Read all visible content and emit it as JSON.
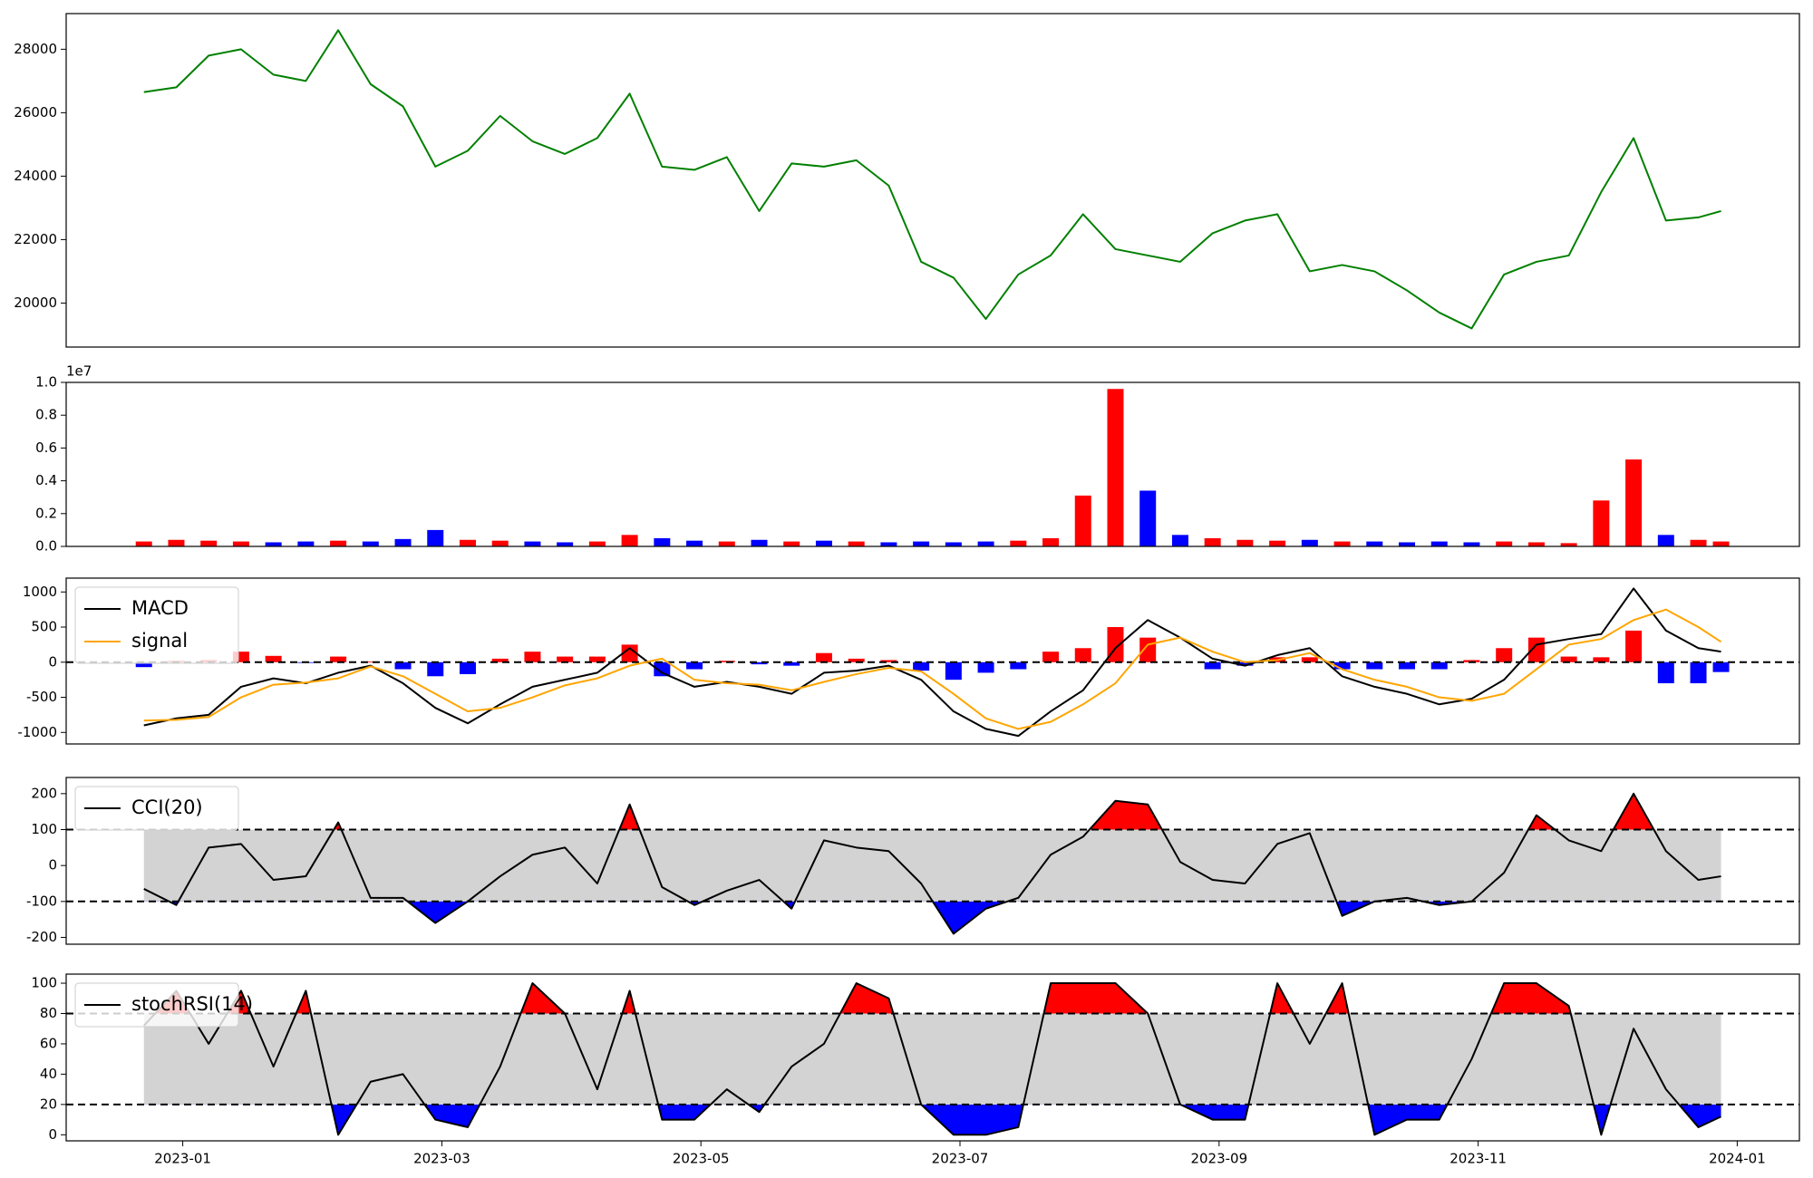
{
  "chart_data": [
    {
      "type": "line",
      "x": [
        -0.3,
        -0.05,
        0.2,
        0.45,
        0.7,
        0.95,
        1.2,
        1.45,
        1.7,
        1.95,
        2.2,
        2.45,
        2.7,
        2.95,
        3.2,
        3.45,
        3.7,
        3.95,
        4.2,
        4.45,
        4.7,
        4.95,
        5.2,
        5.45,
        5.7,
        5.95,
        6.2,
        6.45,
        6.7,
        6.95,
        7.2,
        7.45,
        7.7,
        7.95,
        8.2,
        8.45,
        8.7,
        8.95,
        9.2,
        9.45,
        9.7,
        9.95,
        10.2,
        10.45,
        10.7,
        10.95,
        11.2,
        11.45,
        11.7,
        11.875
      ],
      "xlim": [
        -0.9,
        12.48
      ],
      "ylim": [
        18613,
        29124
      ],
      "yticks": [
        20000,
        22000,
        24000,
        26000,
        28000
      ],
      "series": [
        {
          "color": "green",
          "values": [
            26650,
            26800,
            27800,
            28000,
            27200,
            27000,
            28600,
            26900,
            26200,
            24300,
            24800,
            25900,
            25100,
            24700,
            25200,
            26600,
            24300,
            24200,
            24600,
            22900,
            24400,
            24300,
            24500,
            23700,
            21300,
            20800,
            19500,
            20900,
            21500,
            22800,
            21700,
            21500,
            21300,
            22200,
            22600,
            22800,
            21000,
            21200,
            21000,
            20400,
            19700,
            19200,
            20900,
            21300,
            21500,
            23500,
            25200,
            22600,
            22700,
            22900
          ]
        }
      ]
    },
    {
      "type": "bar",
      "x": [
        -0.3,
        -0.05,
        0.2,
        0.45,
        0.7,
        0.95,
        1.2,
        1.45,
        1.7,
        1.95,
        2.2,
        2.45,
        2.7,
        2.95,
        3.2,
        3.45,
        3.7,
        3.95,
        4.2,
        4.45,
        4.7,
        4.95,
        5.2,
        5.45,
        5.7,
        5.95,
        6.2,
        6.45,
        6.7,
        6.95,
        7.2,
        7.45,
        7.7,
        7.95,
        8.2,
        8.45,
        8.7,
        8.95,
        9.2,
        9.45,
        9.7,
        9.95,
        10.2,
        10.45,
        10.7,
        10.95,
        11.2,
        11.45,
        11.7,
        11.875
      ],
      "xlim": [
        -0.9,
        12.48
      ],
      "ylim": [
        0,
        10000000
      ],
      "y_offset_text": "1e7",
      "yticks": [
        {
          "value": 0,
          "label": "0.0"
        },
        {
          "value": 2000000,
          "label": "0.2"
        },
        {
          "value": 4000000,
          "label": "0.4"
        },
        {
          "value": 6000000,
          "label": "0.6"
        },
        {
          "value": 8000000,
          "label": "0.8"
        },
        {
          "value": 10000000,
          "label": "1.0"
        }
      ],
      "values": [
        300000,
        400000,
        350000,
        300000,
        250000,
        300000,
        350000,
        300000,
        450000,
        1000000,
        400000,
        350000,
        300000,
        250000,
        300000,
        700000,
        500000,
        350000,
        300000,
        400000,
        300000,
        350000,
        300000,
        250000,
        300000,
        250000,
        300000,
        350000,
        500000,
        3100000,
        9600000,
        3400000,
        700000,
        500000,
        400000,
        350000,
        400000,
        300000,
        300000,
        250000,
        300000,
        250000,
        300000,
        250000,
        200000,
        2800000,
        5300000,
        700000,
        400000,
        300000
      ],
      "bar_colors": [
        "red",
        "red",
        "red",
        "red",
        "blue",
        "blue",
        "red",
        "blue",
        "blue",
        "blue",
        "red",
        "red",
        "blue",
        "blue",
        "red",
        "red",
        "blue",
        "blue",
        "red",
        "blue",
        "red",
        "blue",
        "red",
        "blue",
        "blue",
        "blue",
        "blue",
        "red",
        "red",
        "red",
        "red",
        "blue",
        "blue",
        "red",
        "red",
        "red",
        "blue",
        "red",
        "blue",
        "blue",
        "blue",
        "blue",
        "red",
        "red",
        "red",
        "red",
        "red",
        "blue",
        "red",
        "red"
      ]
    },
    {
      "type": "line",
      "x": [
        -0.3,
        -0.05,
        0.2,
        0.45,
        0.7,
        0.95,
        1.2,
        1.45,
        1.7,
        1.95,
        2.2,
        2.45,
        2.7,
        2.95,
        3.2,
        3.45,
        3.7,
        3.95,
        4.2,
        4.45,
        4.7,
        4.95,
        5.2,
        5.45,
        5.7,
        5.95,
        6.2,
        6.45,
        6.7,
        6.95,
        7.2,
        7.45,
        7.7,
        7.95,
        8.2,
        8.45,
        8.7,
        8.95,
        9.2,
        9.45,
        9.7,
        9.95,
        10.2,
        10.45,
        10.7,
        10.95,
        11.2,
        11.45,
        11.7,
        11.875
      ],
      "xlim": [
        -0.9,
        12.48
      ],
      "ylim": [
        -1164,
        1197
      ],
      "yticks": [
        -1000,
        -500,
        0,
        500,
        1000
      ],
      "legend": "upper left",
      "hlines": [
        0
      ],
      "histogram": {
        "colors": {
          "positive": "red",
          "negative": "blue"
        },
        "values": [
          -70,
          20,
          30,
          150,
          90,
          -10,
          80,
          10,
          -100,
          -200,
          -170,
          50,
          150,
          80,
          80,
          250,
          -200,
          -100,
          20,
          -30,
          -50,
          130,
          50,
          30,
          -120,
          -250,
          -150,
          -100,
          150,
          200,
          500,
          350,
          0,
          -100,
          -50,
          70,
          70,
          -100,
          -100,
          -100,
          -100,
          30,
          200,
          350,
          80,
          70,
          450,
          -300,
          -300,
          -140
        ]
      },
      "series": [
        {
          "name": "MACD",
          "color": "black",
          "values": [
            -900,
            -800,
            -750,
            -350,
            -230,
            -300,
            -150,
            -50,
            -300,
            -650,
            -870,
            -600,
            -350,
            -250,
            -150,
            200,
            -150,
            -350,
            -280,
            -350,
            -450,
            -150,
            -120,
            -50,
            -250,
            -700,
            -950,
            -1050,
            -700,
            -400,
            200,
            600,
            350,
            50,
            -50,
            100,
            200,
            -200,
            -350,
            -450,
            -600,
            -520,
            -250,
            250,
            330,
            400,
            1050,
            450,
            200,
            150
          ]
        },
        {
          "name": "signal",
          "color": "orange",
          "values": [
            -830,
            -820,
            -780,
            -500,
            -320,
            -290,
            -230,
            -60,
            -200,
            -450,
            -700,
            -650,
            -500,
            -330,
            -230,
            -50,
            50,
            -250,
            -300,
            -320,
            -400,
            -280,
            -170,
            -80,
            -130,
            -450,
            -800,
            -950,
            -850,
            -600,
            -300,
            250,
            350,
            150,
            0,
            30,
            130,
            -100,
            -250,
            -350,
            -500,
            -550,
            -450,
            -100,
            250,
            330,
            600,
            750,
            500,
            290
          ]
        }
      ]
    },
    {
      "type": "line",
      "x": [
        -0.3,
        -0.05,
        0.2,
        0.45,
        0.7,
        0.95,
        1.2,
        1.45,
        1.7,
        1.95,
        2.2,
        2.45,
        2.7,
        2.95,
        3.2,
        3.45,
        3.7,
        3.95,
        4.2,
        4.45,
        4.7,
        4.95,
        5.2,
        5.45,
        5.7,
        5.95,
        6.2,
        6.45,
        6.7,
        6.95,
        7.2,
        7.45,
        7.7,
        7.95,
        8.2,
        8.45,
        8.7,
        8.95,
        9.2,
        9.45,
        9.7,
        9.95,
        10.2,
        10.45,
        10.7,
        10.95,
        11.2,
        11.45,
        11.7,
        11.875
      ],
      "xlim": [
        -0.9,
        12.48
      ],
      "ylim": [
        -219,
        245
      ],
      "yticks": [
        -200,
        -100,
        0,
        100,
        200
      ],
      "legend": "upper left",
      "thresholds": {
        "lower": -100,
        "upper": 100,
        "band_color": "#d3d3d3",
        "lower_color": "blue",
        "upper_color": "red"
      },
      "series": [
        {
          "name": "CCI(20)",
          "color": "black",
          "values": [
            -65,
            -110,
            50,
            60,
            -40,
            -30,
            120,
            -90,
            -90,
            -160,
            -100,
            -30,
            30,
            50,
            -50,
            170,
            -60,
            -110,
            -70,
            -40,
            -120,
            70,
            50,
            40,
            -50,
            -190,
            -120,
            -90,
            30,
            80,
            180,
            170,
            10,
            -40,
            -50,
            60,
            90,
            -140,
            -100,
            -90,
            -110,
            -100,
            -20,
            140,
            70,
            40,
            200,
            40,
            -40,
            -30
          ]
        }
      ]
    },
    {
      "type": "line",
      "x": [
        -0.3,
        -0.05,
        0.2,
        0.45,
        0.7,
        0.95,
        1.2,
        1.45,
        1.7,
        1.95,
        2.2,
        2.45,
        2.7,
        2.95,
        3.2,
        3.45,
        3.7,
        3.95,
        4.2,
        4.45,
        4.7,
        4.95,
        5.2,
        5.45,
        5.7,
        5.95,
        6.2,
        6.45,
        6.7,
        6.95,
        7.2,
        7.45,
        7.7,
        7.95,
        8.2,
        8.45,
        8.7,
        8.95,
        9.2,
        9.45,
        9.7,
        9.95,
        10.2,
        10.45,
        10.7,
        10.95,
        11.2,
        11.45,
        11.7,
        11.875
      ],
      "xlim": [
        -0.9,
        12.48
      ],
      "ylim": [
        -4,
        106
      ],
      "yticks": [
        0,
        20,
        40,
        60,
        80,
        100
      ],
      "xticks": [
        {
          "value": 0,
          "label": "2023-01"
        },
        {
          "value": 2,
          "label": "2023-03"
        },
        {
          "value": 4,
          "label": "2023-05"
        },
        {
          "value": 6,
          "label": "2023-07"
        },
        {
          "value": 8,
          "label": "2023-09"
        },
        {
          "value": 10,
          "label": "2023-11"
        },
        {
          "value": 12,
          "label": "2024-01"
        }
      ],
      "legend": "upper left",
      "thresholds": {
        "lower": 20,
        "upper": 80,
        "band_color": "#d3d3d3",
        "lower_color": "blue",
        "upper_color": "red"
      },
      "series": [
        {
          "name": "stochRSI(14)",
          "color": "black",
          "values": [
            72,
            95,
            60,
            95,
            45,
            95,
            0,
            35,
            40,
            10,
            5,
            45,
            100,
            80,
            30,
            95,
            10,
            10,
            30,
            15,
            45,
            60,
            100,
            90,
            20,
            0,
            0,
            5,
            100,
            100,
            100,
            80,
            20,
            10,
            10,
            100,
            60,
            100,
            0,
            10,
            10,
            50,
            100,
            100,
            85,
            0,
            70,
            30,
            5,
            12
          ]
        }
      ]
    }
  ]
}
